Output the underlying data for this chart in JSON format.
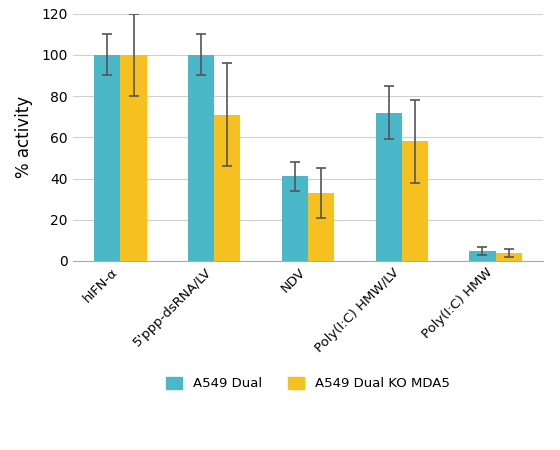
{
  "categories": [
    "hIFN-α",
    "5'ppp-dsRNA/LV",
    "NDV",
    "Poly(I:C) HMW/LV",
    "Poly(I:C) HMW"
  ],
  "a549_dual": [
    100,
    100,
    41,
    72,
    5
  ],
  "a549_dual_err": [
    10,
    10,
    7,
    13,
    2
  ],
  "ko_mda5": [
    100,
    71,
    33,
    58,
    4
  ],
  "ko_mda5_err": [
    20,
    25,
    12,
    20,
    2
  ],
  "bar_color_dual": "#4ab8c8",
  "bar_color_ko": "#f5c020",
  "ylabel": "% activity",
  "ylim": [
    0,
    120
  ],
  "yticks": [
    0,
    20,
    40,
    60,
    80,
    100,
    120
  ],
  "legend_dual": "A549 Dual",
  "legend_ko": "A549 Dual KO MDA5",
  "bar_width": 0.28,
  "background_color": "#ffffff",
  "grid_color": "#d0d0d0",
  "ecolor": "#555555"
}
